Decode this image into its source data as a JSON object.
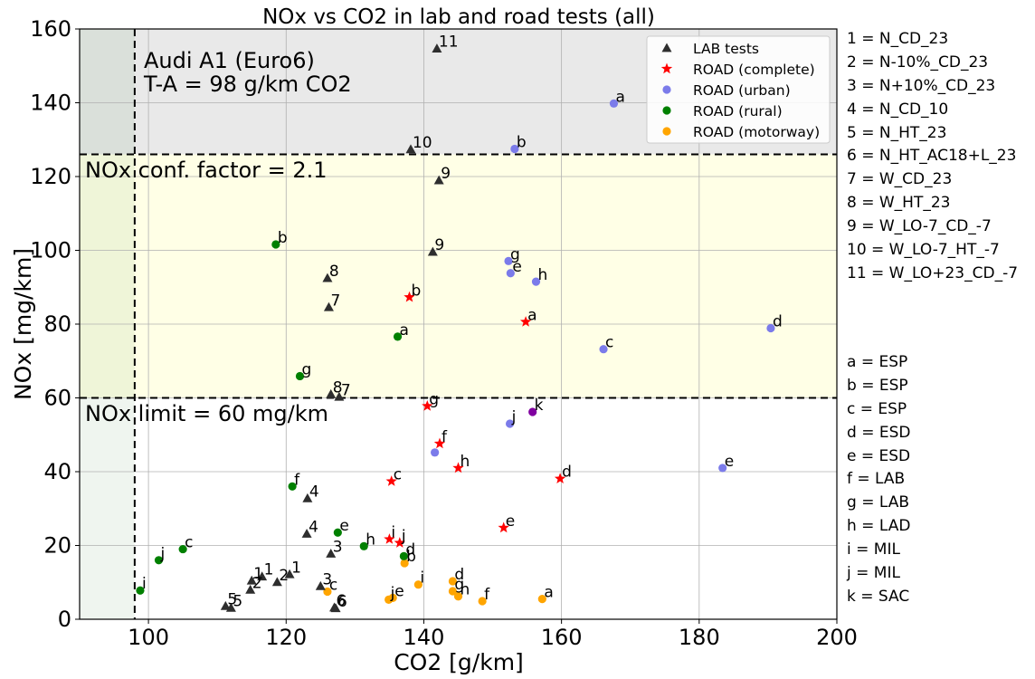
{
  "chart_data": {
    "type": "scatter",
    "title": "NOx vs CO2 in lab and road tests (all)",
    "xlabel": "CO2 [g/km]",
    "ylabel": "NOx [mg/km]",
    "xlim": [
      90,
      200
    ],
    "ylim": [
      0,
      160
    ],
    "xticks": [
      100,
      120,
      140,
      160,
      180,
      200
    ],
    "yticks": [
      0,
      20,
      40,
      60,
      80,
      100,
      120,
      140,
      160
    ],
    "grid": true,
    "legend_position": "top-right",
    "vehicle_annotation": [
      "Audi A1 (Euro6)",
      "T-A = 98 g/km CO2"
    ],
    "thresholds": {
      "ta_co2": 98,
      "nox_limit": 60,
      "nox_limit_label": "NOx limit = 60 mg/km",
      "conformity_level": 126,
      "conformity_label": "NOx conf. factor = 2.1"
    },
    "colors": {
      "lab": "#2e2e2e",
      "road_complete": "#ff0000",
      "road_urban": "#7b7bea",
      "road_rural": "#008000",
      "road_motorway": "#ffa500",
      "conf_band": "#ffffe6",
      "top_band": "#e9e9e9",
      "ta_band": "#eef6ee",
      "purple_mark": "#8000a0"
    },
    "series": [
      {
        "name": "LAB tests",
        "marker": "triangle",
        "color": "#2e2e2e",
        "points": [
          {
            "x": 141.9,
            "y": 154.7,
            "label": "11"
          },
          {
            "x": 138.1,
            "y": 127.4,
            "label": "10"
          },
          {
            "x": 142.2,
            "y": 119.0,
            "label": "9"
          },
          {
            "x": 141.3,
            "y": 99.6,
            "label": "9"
          },
          {
            "x": 126.0,
            "y": 92.5,
            "label": "8"
          },
          {
            "x": 126.2,
            "y": 84.6,
            "label": "7"
          },
          {
            "x": 126.5,
            "y": 61.0,
            "label": "8"
          },
          {
            "x": 127.7,
            "y": 60.3,
            "label": "7"
          },
          {
            "x": 123.1,
            "y": 32.8,
            "label": "4"
          },
          {
            "x": 123.0,
            "y": 23.2,
            "label": "4"
          },
          {
            "x": 126.5,
            "y": 17.8,
            "label": "3"
          },
          {
            "x": 125.0,
            "y": 9.0,
            "label": "3"
          },
          {
            "x": 120.5,
            "y": 12.2,
            "label": "1"
          },
          {
            "x": 118.7,
            "y": 10.1,
            "label": "2"
          },
          {
            "x": 116.5,
            "y": 11.6,
            "label": "1"
          },
          {
            "x": 115.0,
            "y": 10.5,
            "label": "1"
          },
          {
            "x": 114.8,
            "y": 8.0,
            "label": "2"
          },
          {
            "x": 111.2,
            "y": 3.6,
            "label": "5"
          },
          {
            "x": 112.0,
            "y": 3.1,
            "label": "5"
          },
          {
            "x": 127.0,
            "y": 3.2,
            "label": "6"
          },
          {
            "x": 127.2,
            "y": 3.0,
            "label": "6"
          }
        ]
      },
      {
        "name": "ROAD (complete)",
        "marker": "star",
        "color": "#ff0000",
        "points": [
          {
            "x": 137.9,
            "y": 87.3,
            "label": "b"
          },
          {
            "x": 154.8,
            "y": 80.6,
            "label": "a"
          },
          {
            "x": 140.5,
            "y": 57.8,
            "label": "g"
          },
          {
            "x": 142.3,
            "y": 47.6,
            "label": "f"
          },
          {
            "x": 145.0,
            "y": 41.0,
            "label": "h"
          },
          {
            "x": 135.3,
            "y": 37.4,
            "label": "c"
          },
          {
            "x": 159.8,
            "y": 38.1,
            "label": "d"
          },
          {
            "x": 151.6,
            "y": 24.8,
            "label": "e"
          },
          {
            "x": 135.0,
            "y": 21.7,
            "label": "i"
          },
          {
            "x": 136.5,
            "y": 20.7,
            "label": "j"
          }
        ]
      },
      {
        "name": "ROAD (urban)",
        "marker": "circle",
        "color": "#7b7bea",
        "points": [
          {
            "x": 167.6,
            "y": 139.8,
            "label": "a"
          },
          {
            "x": 153.2,
            "y": 127.5,
            "label": "b"
          },
          {
            "x": 152.3,
            "y": 97.1,
            "label": "g"
          },
          {
            "x": 152.6,
            "y": 93.8,
            "label": "e"
          },
          {
            "x": 156.3,
            "y": 91.5,
            "label": "h"
          },
          {
            "x": 166.1,
            "y": 73.2,
            "label": "c"
          },
          {
            "x": 190.4,
            "y": 78.9,
            "label": "d"
          },
          {
            "x": 152.5,
            "y": 53.0,
            "label": "j"
          },
          {
            "x": 141.6,
            "y": 45.2,
            "label": ""
          },
          {
            "x": 183.4,
            "y": 41.0,
            "label": "e"
          },
          {
            "x": 155.8,
            "y": 56.2,
            "label": "k"
          }
        ]
      },
      {
        "name": "ROAD (rural)",
        "marker": "circle",
        "color": "#008000",
        "points": [
          {
            "x": 118.5,
            "y": 101.6,
            "label": "b"
          },
          {
            "x": 136.2,
            "y": 76.6,
            "label": "a"
          },
          {
            "x": 122.0,
            "y": 65.9,
            "label": "g"
          },
          {
            "x": 120.9,
            "y": 36.0,
            "label": "f"
          },
          {
            "x": 105.0,
            "y": 19.0,
            "label": "c"
          },
          {
            "x": 101.5,
            "y": 16.0,
            "label": "j"
          },
          {
            "x": 98.8,
            "y": 7.8,
            "label": "i"
          },
          {
            "x": 127.5,
            "y": 23.5,
            "label": "e"
          },
          {
            "x": 131.3,
            "y": 19.8,
            "label": "h"
          },
          {
            "x": 137.1,
            "y": 17.1,
            "label": "d"
          }
        ]
      },
      {
        "name": "ROAD (motorway)",
        "marker": "circle",
        "color": "#ffa500",
        "points": [
          {
            "x": 137.2,
            "y": 15.2,
            "label": "b"
          },
          {
            "x": 139.2,
            "y": 9.4,
            "label": "i"
          },
          {
            "x": 144.2,
            "y": 10.3,
            "label": "d"
          },
          {
            "x": 144.2,
            "y": 7.6,
            "label": "g"
          },
          {
            "x": 145.0,
            "y": 6.2,
            "label": "h"
          },
          {
            "x": 126.0,
            "y": 7.5,
            "label": "c"
          },
          {
            "x": 134.9,
            "y": 5.3,
            "label": "j"
          },
          {
            "x": 135.5,
            "y": 5.8,
            "label": "e"
          },
          {
            "x": 148.5,
            "y": 4.9,
            "label": "f"
          },
          {
            "x": 157.2,
            "y": 5.5,
            "label": "a"
          }
        ]
      }
    ],
    "test_codes": [
      "1 = N_CD_23",
      "2 = N-10%_CD_23",
      "3 = N+10%_CD_23",
      "4 = N_CD_10",
      "5 = N_HT_23",
      "6 = N_HT_AC18+L_23",
      "7 = W_CD_23",
      "8 = W_HT_23",
      "9 = W_LO-7_CD_-7",
      "10 = W_LO-7_HT_-7",
      "11 = W_LO+23_CD_-7"
    ],
    "route_codes": [
      "a = ESP",
      "b = ESP",
      "c = ESP",
      "d = ESD",
      "e = ESD",
      "f = LAB",
      "g = LAB",
      "h = LAD",
      "i = MIL",
      "j = MIL",
      "k = SAC"
    ]
  }
}
